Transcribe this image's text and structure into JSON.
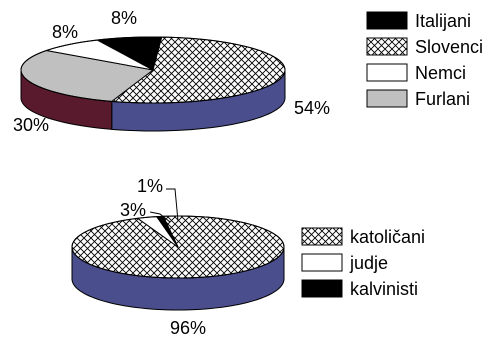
{
  "chart_data": [
    {
      "type": "pie",
      "title": "",
      "slices": [
        {
          "label": "Italijani",
          "value": 8,
          "value_label": "8%",
          "fill": "solid",
          "color": "#000000"
        },
        {
          "label": "Slovenci",
          "value": 54,
          "value_label": "54%",
          "fill": "crosshatch",
          "color": "#ffffff"
        },
        {
          "label": "Furlani",
          "value": 30,
          "value_label": "30%",
          "fill": "solid",
          "color": "#c0c0c0"
        },
        {
          "label": "Nemci",
          "value": 8,
          "value_label": "8%",
          "fill": "solid",
          "color": "#ffffff"
        }
      ],
      "side_colors": {
        "Slovenci": "#4a4e8c",
        "Furlani": "#5a1a2e"
      },
      "legend": [
        "Italijani",
        "Slovenci",
        "Nemci",
        "Furlani"
      ],
      "legend_position": "right"
    },
    {
      "type": "pie",
      "title": "",
      "slices": [
        {
          "label": "katoličani",
          "value": 96,
          "value_label": "96%",
          "fill": "crosshatch",
          "color": "#ffffff"
        },
        {
          "label": "judje",
          "value": 3,
          "value_label": "3%",
          "fill": "solid",
          "color": "#ffffff"
        },
        {
          "label": "kalvinisti",
          "value": 1,
          "value_label": "1%",
          "fill": "solid",
          "color": "#000000"
        }
      ],
      "side_colors": {
        "katoličani": "#4a4e8c"
      },
      "legend": [
        "katoličani",
        "judje",
        "kalvinisti"
      ],
      "legend_position": "right"
    }
  ]
}
